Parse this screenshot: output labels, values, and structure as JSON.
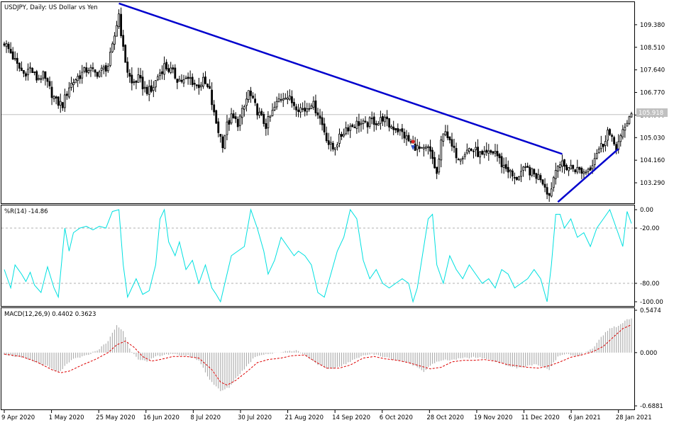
{
  "chart_data": [
    {
      "type": "candlestick",
      "title": "USDJPY, Daily:  US Dollar vs Yen",
      "symbol": "USDJPY",
      "timeframe": "Daily",
      "ylim": [
        102.5,
        110.25
      ],
      "y_ticks": [
        "109.380",
        "108.510",
        "107.640",
        "106.770",
        "105.900",
        "105.030",
        "104.160",
        "103.290"
      ],
      "y_tick_values": [
        109.38,
        108.51,
        107.64,
        106.77,
        105.9,
        105.03,
        104.16,
        103.29
      ],
      "current_price": "105.918",
      "current_price_value": 105.918,
      "x_labels": [
        "9 Apr 2020",
        "1 May 2020",
        "25 May 2020",
        "16 Jun 2020",
        "8 Jul 2020",
        "30 Jul 2020",
        "21 Aug 2020",
        "14 Sep 2020",
        "6 Oct 2020",
        "28 Oct 2020",
        "19 Nov 2020",
        "11 Dec 2020",
        "6 Jan 2021",
        "28 Jan 2021"
      ],
      "close_path": [
        [
          0,
          108.7
        ],
        [
          3,
          108.3
        ],
        [
          6,
          107.8
        ],
        [
          9,
          107.5
        ],
        [
          12,
          107.7
        ],
        [
          15,
          107.3
        ],
        [
          18,
          107.4
        ],
        [
          21,
          106.9
        ],
        [
          24,
          106.4
        ],
        [
          27,
          106.3
        ],
        [
          30,
          107.0
        ],
        [
          33,
          107.3
        ],
        [
          36,
          107.5
        ],
        [
          39,
          107.7
        ],
        [
          42,
          107.5
        ],
        [
          45,
          107.6
        ],
        [
          48,
          107.8
        ],
        [
          50,
          108.5
        ],
        [
          52,
          109.4
        ],
        [
          53,
          109.8
        ],
        [
          55,
          108.4
        ],
        [
          57,
          107.6
        ],
        [
          59,
          107.1
        ],
        [
          62,
          107.3
        ],
        [
          65,
          106.9
        ],
        [
          68,
          106.8
        ],
        [
          71,
          107.4
        ],
        [
          74,
          107.8
        ],
        [
          77,
          107.6
        ],
        [
          80,
          107.3
        ],
        [
          83,
          107.2
        ],
        [
          86,
          107.3
        ],
        [
          89,
          107.0
        ],
        [
          92,
          107.2
        ],
        [
          95,
          106.8
        ],
        [
          97,
          105.9
        ],
        [
          99,
          105.3
        ],
        [
          101,
          104.8
        ],
        [
          103,
          105.5
        ],
        [
          105,
          105.8
        ],
        [
          108,
          105.6
        ],
        [
          111,
          106.2
        ],
        [
          113,
          106.8
        ],
        [
          115,
          106.4
        ],
        [
          118,
          105.9
        ],
        [
          121,
          105.5
        ],
        [
          124,
          106.0
        ],
        [
          127,
          106.5
        ],
        [
          130,
          106.7
        ],
        [
          133,
          106.4
        ],
        [
          136,
          106.2
        ],
        [
          139,
          106.1
        ],
        [
          142,
          106.4
        ],
        [
          145,
          106.0
        ],
        [
          148,
          105.3
        ],
        [
          150,
          104.8
        ],
        [
          152,
          104.6
        ],
        [
          155,
          105.0
        ],
        [
          158,
          105.4
        ],
        [
          161,
          105.5
        ],
        [
          164,
          105.6
        ],
        [
          167,
          105.5
        ],
        [
          170,
          105.7
        ],
        [
          173,
          105.6
        ],
        [
          175,
          105.8
        ],
        [
          178,
          105.5
        ],
        [
          181,
          105.4
        ],
        [
          184,
          105.2
        ],
        [
          187,
          104.9
        ],
        [
          190,
          104.7
        ],
        [
          193,
          104.5
        ],
        [
          196,
          104.6
        ],
        [
          198,
          104.2
        ],
        [
          200,
          103.6
        ],
        [
          202,
          104.8
        ],
        [
          204,
          105.4
        ],
        [
          206,
          104.8
        ],
        [
          208,
          104.5
        ],
        [
          210,
          104.3
        ],
        [
          212,
          104.4
        ],
        [
          215,
          104.6
        ],
        [
          218,
          104.5
        ],
        [
          221,
          104.3
        ],
        [
          224,
          104.4
        ],
        [
          227,
          104.5
        ],
        [
          230,
          104.0
        ],
        [
          233,
          103.8
        ],
        [
          236,
          103.4
        ],
        [
          239,
          103.7
        ],
        [
          242,
          103.8
        ],
        [
          245,
          103.6
        ],
        [
          248,
          103.5
        ],
        [
          250,
          103.2
        ],
        [
          252,
          102.8
        ],
        [
          254,
          103.5
        ],
        [
          256,
          104.1
        ],
        [
          259,
          103.9
        ],
        [
          262,
          103.9
        ],
        [
          265,
          103.8
        ],
        [
          268,
          103.7
        ],
        [
          271,
          103.9
        ],
        [
          274,
          104.5
        ],
        [
          277,
          104.8
        ],
        [
          279,
          105.3
        ],
        [
          281,
          104.9
        ],
        [
          283,
          104.7
        ],
        [
          285,
          105.0
        ],
        [
          287,
          105.4
        ],
        [
          289,
          105.9
        ]
      ],
      "trendlines": [
        {
          "name": "downtrend",
          "from": [
            53,
            110.2
          ],
          "to": [
            258,
            104.4
          ],
          "color": "#0000cd"
        },
        {
          "name": "uptrend",
          "from": [
            256,
            102.55
          ],
          "to": [
            284,
            104.6
          ],
          "color": "#0000cd"
        }
      ],
      "arrow_marker_index": 189
    },
    {
      "type": "line",
      "title": "%R(14) -14.86",
      "ylim": [
        -100,
        0
      ],
      "y_ticks": [
        "0.00",
        "-20.00",
        "-80.00",
        "-100.00"
      ],
      "y_tick_values": [
        0,
        -20,
        -80,
        -100
      ],
      "levels": [
        -20,
        -80
      ],
      "color": "#00e0e0",
      "points": [
        [
          0,
          -65
        ],
        [
          3,
          -85
        ],
        [
          5,
          -60
        ],
        [
          8,
          -70
        ],
        [
          10,
          -78
        ],
        [
          12,
          -68
        ],
        [
          14,
          -82
        ],
        [
          17,
          -90
        ],
        [
          20,
          -62
        ],
        [
          23,
          -85
        ],
        [
          25,
          -95
        ],
        [
          28,
          -20
        ],
        [
          30,
          -45
        ],
        [
          32,
          -25
        ],
        [
          35,
          -20
        ],
        [
          38,
          -18
        ],
        [
          41,
          -22
        ],
        [
          44,
          -18
        ],
        [
          47,
          -20
        ],
        [
          50,
          -2
        ],
        [
          53,
          0
        ],
        [
          55,
          -60
        ],
        [
          57,
          -95
        ],
        [
          59,
          -85
        ],
        [
          61,
          -75
        ],
        [
          64,
          -92
        ],
        [
          67,
          -88
        ],
        [
          70,
          -60
        ],
        [
          72,
          -10
        ],
        [
          74,
          0
        ],
        [
          76,
          -35
        ],
        [
          79,
          -50
        ],
        [
          81,
          -35
        ],
        [
          84,
          -65
        ],
        [
          87,
          -55
        ],
        [
          90,
          -80
        ],
        [
          93,
          -60
        ],
        [
          96,
          -85
        ],
        [
          98,
          -92
        ],
        [
          100,
          -100
        ],
        [
          102,
          -80
        ],
        [
          105,
          -50
        ],
        [
          108,
          -45
        ],
        [
          111,
          -40
        ],
        [
          114,
          0
        ],
        [
          117,
          -20
        ],
        [
          120,
          -45
        ],
        [
          122,
          -70
        ],
        [
          125,
          -55
        ],
        [
          128,
          -30
        ],
        [
          131,
          -40
        ],
        [
          134,
          -50
        ],
        [
          136,
          -45
        ],
        [
          139,
          -50
        ],
        [
          142,
          -60
        ],
        [
          145,
          -90
        ],
        [
          148,
          -95
        ],
        [
          151,
          -70
        ],
        [
          154,
          -45
        ],
        [
          157,
          -30
        ],
        [
          160,
          0
        ],
        [
          163,
          -10
        ],
        [
          166,
          -55
        ],
        [
          169,
          -75
        ],
        [
          172,
          -65
        ],
        [
          175,
          -80
        ],
        [
          178,
          -85
        ],
        [
          181,
          -80
        ],
        [
          184,
          -75
        ],
        [
          187,
          -80
        ],
        [
          189,
          -100
        ],
        [
          191,
          -85
        ],
        [
          194,
          -40
        ],
        [
          196,
          -10
        ],
        [
          198,
          -5
        ],
        [
          200,
          -60
        ],
        [
          203,
          -80
        ],
        [
          206,
          -50
        ],
        [
          209,
          -65
        ],
        [
          212,
          -75
        ],
        [
          215,
          -60
        ],
        [
          218,
          -70
        ],
        [
          221,
          -80
        ],
        [
          224,
          -75
        ],
        [
          227,
          -85
        ],
        [
          230,
          -65
        ],
        [
          233,
          -70
        ],
        [
          236,
          -85
        ],
        [
          239,
          -80
        ],
        [
          242,
          -75
        ],
        [
          245,
          -65
        ],
        [
          248,
          -75
        ],
        [
          251,
          -100
        ],
        [
          253,
          -60
        ],
        [
          255,
          -5
        ],
        [
          257,
          -5
        ],
        [
          259,
          -20
        ],
        [
          262,
          -10
        ],
        [
          265,
          -30
        ],
        [
          268,
          -25
        ],
        [
          271,
          -40
        ],
        [
          274,
          -20
        ],
        [
          277,
          -10
        ],
        [
          280,
          0
        ],
        [
          283,
          -20
        ],
        [
          286,
          -40
        ],
        [
          288,
          -2
        ],
        [
          290,
          -15
        ]
      ]
    },
    {
      "type": "bar+line",
      "title": "MACD(12,26,9) 0.4402 0.3623",
      "ylim": [
        -0.6881,
        0.5474
      ],
      "y_ticks": [
        "0.5474",
        "0.000",
        "-0.6881"
      ],
      "y_tick_values": [
        0.5474,
        0,
        -0.6881
      ],
      "histogram_color": "#b0b0b0",
      "signal_color": "#dd0000",
      "macd_path": [
        [
          0,
          -0.02
        ],
        [
          10,
          -0.08
        ],
        [
          20,
          -0.18
        ],
        [
          25,
          -0.26
        ],
        [
          28,
          -0.18
        ],
        [
          32,
          -0.08
        ],
        [
          38,
          -0.04
        ],
        [
          44,
          0.05
        ],
        [
          48,
          0.15
        ],
        [
          52,
          0.35
        ],
        [
          55,
          0.28
        ],
        [
          58,
          0.05
        ],
        [
          62,
          -0.08
        ],
        [
          66,
          -0.12
        ],
        [
          70,
          -0.05
        ],
        [
          75,
          -0.02
        ],
        [
          80,
          -0.03
        ],
        [
          85,
          -0.04
        ],
        [
          90,
          -0.1
        ],
        [
          95,
          -0.35
        ],
        [
          100,
          -0.5
        ],
        [
          104,
          -0.45
        ],
        [
          108,
          -0.3
        ],
        [
          112,
          -0.18
        ],
        [
          116,
          -0.05
        ],
        [
          120,
          -0.02
        ],
        [
          125,
          -0.01
        ],
        [
          130,
          0.02
        ],
        [
          135,
          0.03
        ],
        [
          140,
          -0.05
        ],
        [
          145,
          -0.15
        ],
        [
          150,
          -0.22
        ],
        [
          155,
          -0.18
        ],
        [
          160,
          -0.12
        ],
        [
          165,
          -0.04
        ],
        [
          170,
          -0.02
        ],
        [
          175,
          -0.05
        ],
        [
          180,
          -0.09
        ],
        [
          185,
          -0.12
        ],
        [
          190,
          -0.17
        ],
        [
          194,
          -0.24
        ],
        [
          198,
          -0.14
        ],
        [
          203,
          -0.1
        ],
        [
          208,
          -0.09
        ],
        [
          213,
          -0.07
        ],
        [
          218,
          -0.06
        ],
        [
          223,
          -0.08
        ],
        [
          228,
          -0.12
        ],
        [
          232,
          -0.16
        ],
        [
          237,
          -0.2
        ],
        [
          241,
          -0.18
        ],
        [
          245,
          -0.15
        ],
        [
          249,
          -0.19
        ],
        [
          252,
          -0.22
        ],
        [
          256,
          -0.05
        ],
        [
          260,
          -0.02
        ],
        [
          264,
          -0.05
        ],
        [
          268,
          -0.01
        ],
        [
          272,
          0.05
        ],
        [
          276,
          0.2
        ],
        [
          280,
          0.32
        ],
        [
          284,
          0.34
        ],
        [
          288,
          0.44
        ],
        [
          290,
          0.44
        ]
      ],
      "signal_path": [
        [
          0,
          -0.02
        ],
        [
          8,
          -0.05
        ],
        [
          15,
          -0.12
        ],
        [
          22,
          -0.22
        ],
        [
          26,
          -0.26
        ],
        [
          30,
          -0.24
        ],
        [
          36,
          -0.16
        ],
        [
          42,
          -0.09
        ],
        [
          48,
          0.0
        ],
        [
          52,
          0.1
        ],
        [
          56,
          0.15
        ],
        [
          60,
          0.07
        ],
        [
          64,
          -0.05
        ],
        [
          68,
          -0.11
        ],
        [
          72,
          -0.09
        ],
        [
          78,
          -0.05
        ],
        [
          84,
          -0.05
        ],
        [
          90,
          -0.07
        ],
        [
          96,
          -0.22
        ],
        [
          100,
          -0.38
        ],
        [
          103,
          -0.42
        ],
        [
          107,
          -0.36
        ],
        [
          112,
          -0.25
        ],
        [
          117,
          -0.13
        ],
        [
          122,
          -0.09
        ],
        [
          128,
          -0.07
        ],
        [
          133,
          -0.04
        ],
        [
          139,
          -0.03
        ],
        [
          144,
          -0.12
        ],
        [
          149,
          -0.2
        ],
        [
          155,
          -0.2
        ],
        [
          160,
          -0.16
        ],
        [
          166,
          -0.07
        ],
        [
          171,
          -0.05
        ],
        [
          176,
          -0.08
        ],
        [
          182,
          -0.1
        ],
        [
          187,
          -0.13
        ],
        [
          192,
          -0.17
        ],
        [
          197,
          -0.21
        ],
        [
          202,
          -0.19
        ],
        [
          207,
          -0.12
        ],
        [
          212,
          -0.1
        ],
        [
          217,
          -0.1
        ],
        [
          222,
          -0.09
        ],
        [
          227,
          -0.11
        ],
        [
          232,
          -0.15
        ],
        [
          237,
          -0.17
        ],
        [
          242,
          -0.19
        ],
        [
          247,
          -0.2
        ],
        [
          252,
          -0.17
        ],
        [
          257,
          -0.12
        ],
        [
          262,
          -0.06
        ],
        [
          267,
          -0.03
        ],
        [
          272,
          0.01
        ],
        [
          277,
          0.08
        ],
        [
          282,
          0.21
        ],
        [
          286,
          0.31
        ],
        [
          290,
          0.36
        ]
      ]
    }
  ]
}
